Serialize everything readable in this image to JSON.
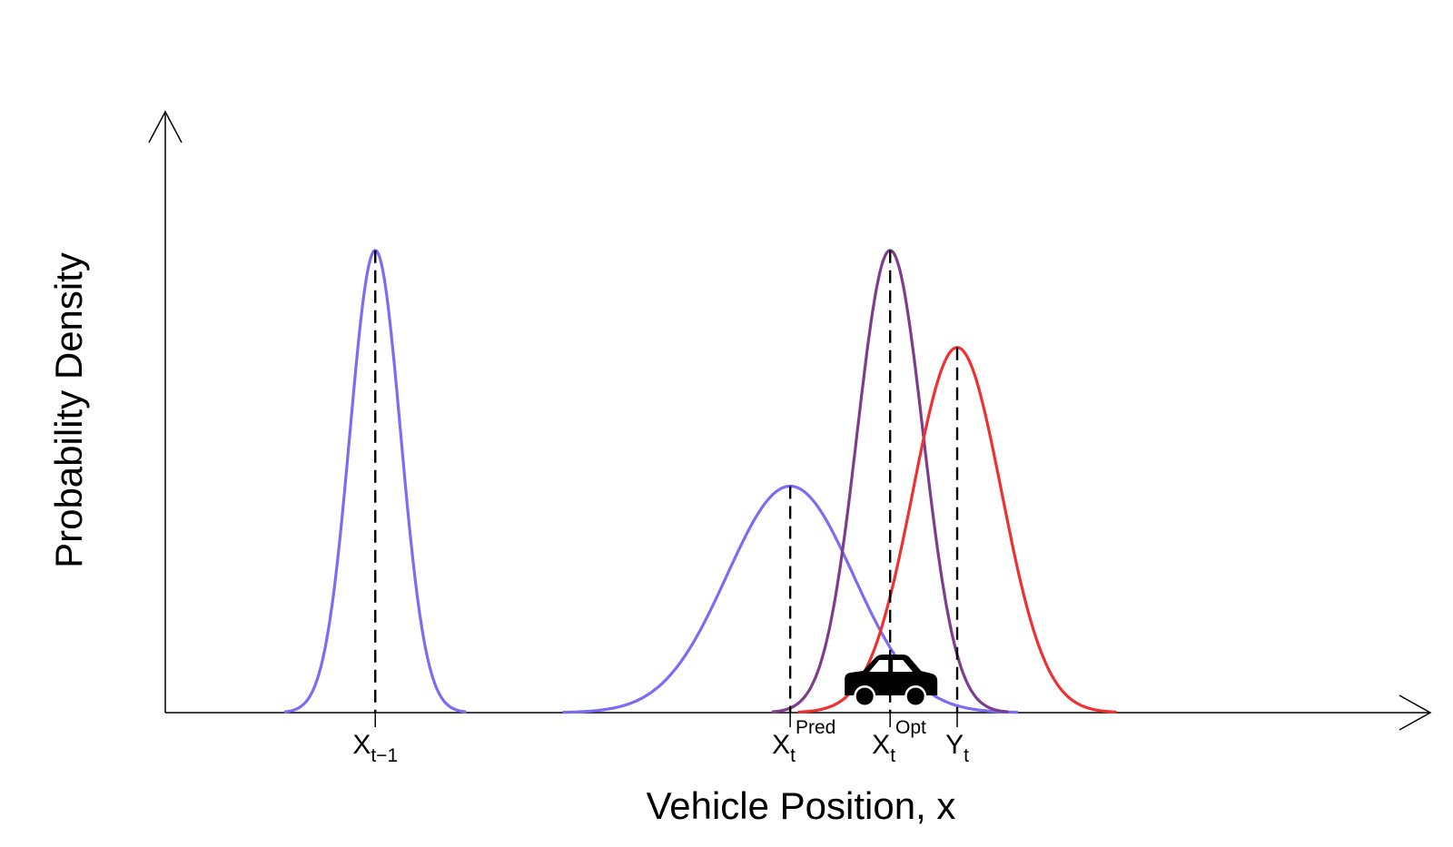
{
  "chart_data": {
    "type": "line",
    "title": "",
    "xlabel": "Vehicle Position, x",
    "ylabel": "Probability Density",
    "xlim": [
      0,
      100
    ],
    "ylim": [
      0,
      1.3
    ],
    "grid": false,
    "legend": "none",
    "series": [
      {
        "mean": 16.6,
        "sd": 2.0,
        "peak": 1.0,
        "color": "#7b6cf6"
      },
      {
        "mean": 49.4,
        "sd": 5.0,
        "peak": 0.49,
        "color": "#7b6cf6"
      },
      {
        "mean": 57.3,
        "sd": 2.6,
        "peak": 1.0,
        "color": "#7d3c8c"
      },
      {
        "mean": 62.6,
        "sd": 3.5,
        "peak": 0.79,
        "color": "#f03030"
      }
    ],
    "markers": [
      {
        "x": 16.6,
        "label_base": "X",
        "label_sub": "t−1",
        "label_sup": ""
      },
      {
        "x": 49.4,
        "label_base": "X",
        "label_sub": "t",
        "label_sup": "Pred"
      },
      {
        "x": 57.3,
        "label_base": "X",
        "label_sub": "t",
        "label_sup": "Opt"
      },
      {
        "x": 62.6,
        "label_base": "Y",
        "label_sub": "t",
        "label_sup": ""
      }
    ],
    "vehicle": {
      "x": 57.3,
      "icon": "car-icon"
    }
  }
}
